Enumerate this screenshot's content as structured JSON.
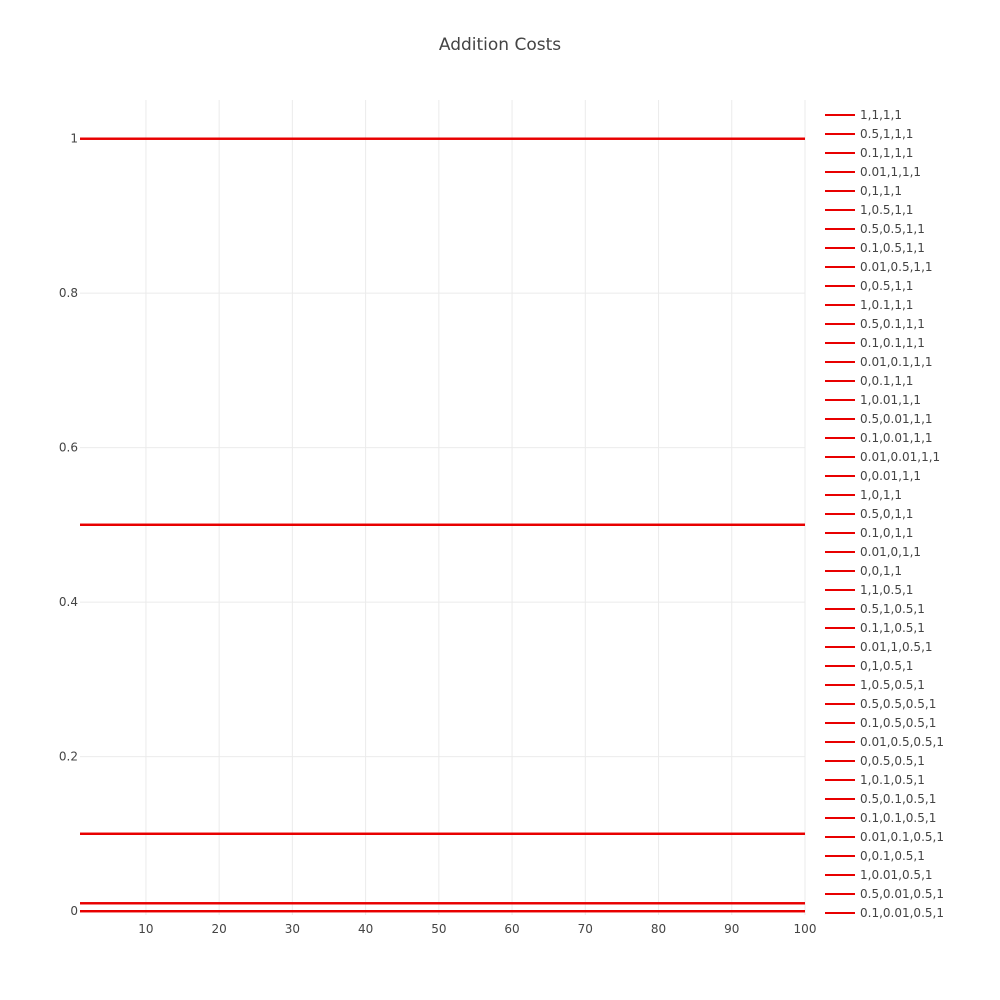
{
  "chart_data": {
    "type": "line",
    "title": "Addition Costs",
    "xlabel": "",
    "ylabel": "",
    "x_range": [
      1,
      100
    ],
    "y_range": [
      -0.005,
      1.05
    ],
    "x_ticks": [
      10,
      20,
      30,
      40,
      50,
      60,
      70,
      80,
      90,
      100
    ],
    "y_ticks": [
      0,
      0.2,
      0.4,
      0.6,
      0.8,
      1
    ],
    "y_tick_labels": [
      "0",
      "0.2",
      "0.4",
      "0.6",
      "0.8",
      "1"
    ],
    "grid": true,
    "legend_position": "right",
    "line_color": "#e80000",
    "x": [
      1,
      100
    ],
    "series": [
      {
        "name": "1,1,1,1",
        "values": [
          1,
          1
        ]
      },
      {
        "name": "0.5,1,1,1",
        "values": [
          0.5,
          0.5
        ]
      },
      {
        "name": "0.1,1,1,1",
        "values": [
          0.1,
          0.1
        ]
      },
      {
        "name": "0.01,1,1,1",
        "values": [
          0.01,
          0.01
        ]
      },
      {
        "name": "0,1,1,1",
        "values": [
          0,
          0
        ]
      },
      {
        "name": "1,0.5,1,1",
        "values": [
          1,
          1
        ]
      },
      {
        "name": "0.5,0.5,1,1",
        "values": [
          0.5,
          0.5
        ]
      },
      {
        "name": "0.1,0.5,1,1",
        "values": [
          0.1,
          0.1
        ]
      },
      {
        "name": "0.01,0.5,1,1",
        "values": [
          0.01,
          0.01
        ]
      },
      {
        "name": "0,0.5,1,1",
        "values": [
          0,
          0
        ]
      },
      {
        "name": "1,0.1,1,1",
        "values": [
          1,
          1
        ]
      },
      {
        "name": "0.5,0.1,1,1",
        "values": [
          0.5,
          0.5
        ]
      },
      {
        "name": "0.1,0.1,1,1",
        "values": [
          0.1,
          0.1
        ]
      },
      {
        "name": "0.01,0.1,1,1",
        "values": [
          0.01,
          0.01
        ]
      },
      {
        "name": "0,0.1,1,1",
        "values": [
          0,
          0
        ]
      },
      {
        "name": "1,0.01,1,1",
        "values": [
          1,
          1
        ]
      },
      {
        "name": "0.5,0.01,1,1",
        "values": [
          0.5,
          0.5
        ]
      },
      {
        "name": "0.1,0.01,1,1",
        "values": [
          0.1,
          0.1
        ]
      },
      {
        "name": "0.01,0.01,1,1",
        "values": [
          0.01,
          0.01
        ]
      },
      {
        "name": "0,0.01,1,1",
        "values": [
          0,
          0
        ]
      },
      {
        "name": "1,0,1,1",
        "values": [
          1,
          1
        ]
      },
      {
        "name": "0.5,0,1,1",
        "values": [
          0.5,
          0.5
        ]
      },
      {
        "name": "0.1,0,1,1",
        "values": [
          0.1,
          0.1
        ]
      },
      {
        "name": "0.01,0,1,1",
        "values": [
          0.01,
          0.01
        ]
      },
      {
        "name": "0,0,1,1",
        "values": [
          0,
          0
        ]
      },
      {
        "name": "1,1,0.5,1",
        "values": [
          1,
          1
        ]
      },
      {
        "name": "0.5,1,0.5,1",
        "values": [
          0.5,
          0.5
        ]
      },
      {
        "name": "0.1,1,0.5,1",
        "values": [
          0.1,
          0.1
        ]
      },
      {
        "name": "0.01,1,0.5,1",
        "values": [
          0.01,
          0.01
        ]
      },
      {
        "name": "0,1,0.5,1",
        "values": [
          0,
          0
        ]
      },
      {
        "name": "1,0.5,0.5,1",
        "values": [
          1,
          1
        ]
      },
      {
        "name": "0.5,0.5,0.5,1",
        "values": [
          0.5,
          0.5
        ]
      },
      {
        "name": "0.1,0.5,0.5,1",
        "values": [
          0.1,
          0.1
        ]
      },
      {
        "name": "0.01,0.5,0.5,1",
        "values": [
          0.01,
          0.01
        ]
      },
      {
        "name": "0,0.5,0.5,1",
        "values": [
          0,
          0
        ]
      },
      {
        "name": "1,0.1,0.5,1",
        "values": [
          1,
          1
        ]
      },
      {
        "name": "0.5,0.1,0.5,1",
        "values": [
          0.5,
          0.5
        ]
      },
      {
        "name": "0.1,0.1,0.5,1",
        "values": [
          0.1,
          0.1
        ]
      },
      {
        "name": "0.01,0.1,0.5,1",
        "values": [
          0.01,
          0.01
        ]
      },
      {
        "name": "0,0.1,0.5,1",
        "values": [
          0,
          0
        ]
      },
      {
        "name": "1,0.01,0.5,1",
        "values": [
          1,
          1
        ]
      },
      {
        "name": "0.5,0.01,0.5,1",
        "values": [
          0.5,
          0.5
        ]
      },
      {
        "name": "0.1,0.01,0.5,1",
        "values": [
          0.1,
          0.1
        ]
      }
    ]
  }
}
